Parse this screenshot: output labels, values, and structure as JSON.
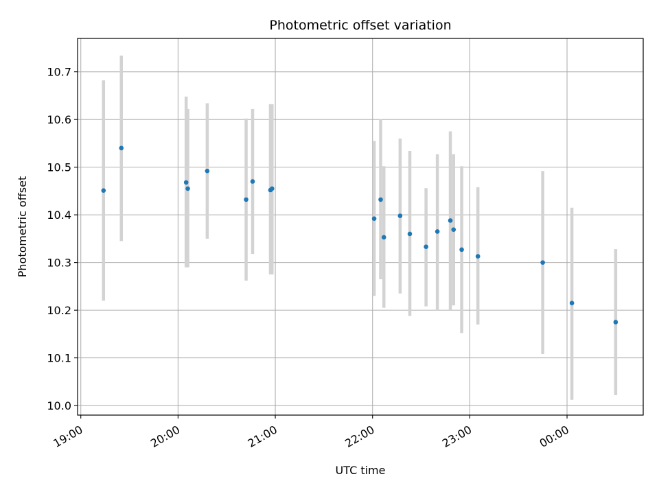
{
  "chart_data": {
    "type": "scatter",
    "title": "Photometric offset variation",
    "xlabel": "UTC time",
    "ylabel": "Photometric offset",
    "x_unit": "time (HH:MM, UTC)",
    "xlim": [
      "18:58",
      "00:47"
    ],
    "ylim": [
      9.98,
      10.77
    ],
    "x_ticks": [
      "19:00",
      "20:00",
      "21:00",
      "22:00",
      "23:00",
      "00:00"
    ],
    "y_ticks": [
      10.0,
      10.1,
      10.2,
      10.3,
      10.4,
      10.5,
      10.6,
      10.7
    ],
    "grid": true,
    "point_color": "#1f77b4",
    "errorbar_color": "#d3d3d3",
    "points": [
      {
        "x": "19:14",
        "y": 10.451,
        "yerr_low": 10.22,
        "yerr_high": 10.682
      },
      {
        "x": "19:25",
        "y": 10.54,
        "yerr_low": 10.345,
        "yerr_high": 10.734
      },
      {
        "x": "20:05",
        "y": 10.468,
        "yerr_low": 10.29,
        "yerr_high": 10.648
      },
      {
        "x": "20:06",
        "y": 10.455,
        "yerr_low": 10.29,
        "yerr_high": 10.622
      },
      {
        "x": "20:18",
        "y": 10.492,
        "yerr_low": 10.35,
        "yerr_high": 10.634
      },
      {
        "x": "20:42",
        "y": 10.432,
        "yerr_low": 10.262,
        "yerr_high": 10.602
      },
      {
        "x": "20:46",
        "y": 10.47,
        "yerr_low": 10.318,
        "yerr_high": 10.622
      },
      {
        "x": "20:57",
        "y": 10.452,
        "yerr_low": 10.275,
        "yerr_high": 10.632
      },
      {
        "x": "20:58",
        "y": 10.455,
        "yerr_low": 10.275,
        "yerr_high": 10.632
      },
      {
        "x": "22:01",
        "y": 10.392,
        "yerr_low": 10.23,
        "yerr_high": 10.555
      },
      {
        "x": "22:05",
        "y": 10.432,
        "yerr_low": 10.265,
        "yerr_high": 10.6
      },
      {
        "x": "22:07",
        "y": 10.353,
        "yerr_low": 10.205,
        "yerr_high": 10.502
      },
      {
        "x": "22:17",
        "y": 10.398,
        "yerr_low": 10.235,
        "yerr_high": 10.56
      },
      {
        "x": "22:23",
        "y": 10.36,
        "yerr_low": 10.188,
        "yerr_high": 10.534
      },
      {
        "x": "22:33",
        "y": 10.333,
        "yerr_low": 10.208,
        "yerr_high": 10.456
      },
      {
        "x": "22:40",
        "y": 10.365,
        "yerr_low": 10.2,
        "yerr_high": 10.527
      },
      {
        "x": "22:48",
        "y": 10.388,
        "yerr_low": 10.2,
        "yerr_high": 10.575
      },
      {
        "x": "22:50",
        "y": 10.369,
        "yerr_low": 10.21,
        "yerr_high": 10.527
      },
      {
        "x": "22:55",
        "y": 10.327,
        "yerr_low": 10.152,
        "yerr_high": 10.502
      },
      {
        "x": "23:05",
        "y": 10.313,
        "yerr_low": 10.17,
        "yerr_high": 10.458
      },
      {
        "x": "23:45",
        "y": 10.3,
        "yerr_low": 10.108,
        "yerr_high": 10.492
      },
      {
        "x": "00:03",
        "y": 10.215,
        "yerr_low": 10.012,
        "yerr_high": 10.415
      },
      {
        "x": "00:30",
        "y": 10.175,
        "yerr_low": 10.022,
        "yerr_high": 10.328
      }
    ]
  }
}
